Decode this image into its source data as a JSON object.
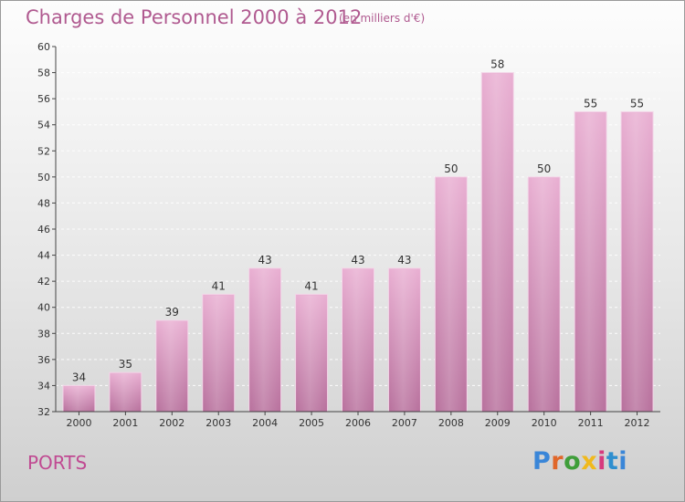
{
  "header": {
    "title": "Charges de Personnel 2000 à 2012",
    "subtitle": "(en milliers d'€)"
  },
  "footer": {
    "place": "PORTS",
    "logo_text": "Proxiti"
  },
  "colors": {
    "bar_light": "#e9afd2",
    "bar_dark": "#b8719d",
    "title": "#b05a90",
    "axis": "#444444"
  },
  "chart_data": {
    "type": "bar",
    "title": "Charges de Personnel 2000 à 2012",
    "subtitle": "(en milliers d'€)",
    "categories": [
      "2000",
      "2001",
      "2002",
      "2003",
      "2004",
      "2005",
      "2006",
      "2007",
      "2008",
      "2009",
      "2010",
      "2011",
      "2012"
    ],
    "values": [
      34,
      35,
      39,
      41,
      43,
      41,
      43,
      43,
      50,
      58,
      50,
      55,
      55
    ],
    "ylim": [
      32,
      60
    ],
    "yticks": [
      32,
      34,
      36,
      38,
      40,
      42,
      44,
      46,
      48,
      50,
      52,
      54,
      56,
      58,
      60
    ],
    "grid": true,
    "data_labels": true
  }
}
